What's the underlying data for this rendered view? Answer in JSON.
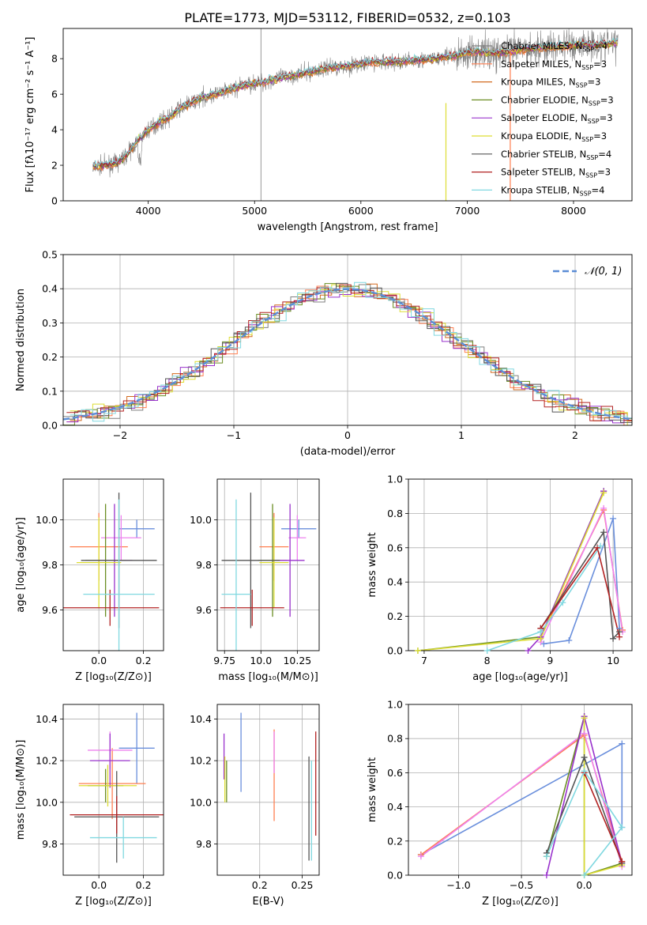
{
  "figure": {
    "title": "PLATE=1773, MJD=53112, FIBERID=0532, z=0.103"
  },
  "models": [
    {
      "name": "Chabrier MILES",
      "nssp": "4",
      "color": "#808080"
    },
    {
      "name": "Salpeter MILES",
      "nssp": "3",
      "color": "#ff7f50"
    },
    {
      "name": "Kroupa MILES",
      "nssp": "3",
      "color": "#d2691e"
    },
    {
      "name": "Chabrier ELODIE",
      "nssp": "3",
      "color": "#6b8e23"
    },
    {
      "name": "Salpeter ELODIE",
      "nssp": "3",
      "color": "#9932cc"
    },
    {
      "name": "Kroupa ELODIE",
      "nssp": "3",
      "color": "#dddd33"
    },
    {
      "name": "Chabrier STELIB",
      "nssp": "4",
      "color": "#555555"
    },
    {
      "name": "Salpeter STELIB",
      "nssp": "3",
      "color": "#b22222"
    },
    {
      "name": "Kroupa STELIB",
      "nssp": "4",
      "color": "#80d8e0"
    }
  ],
  "chart_data": [
    {
      "id": "spectrum",
      "type": "line",
      "xlabel": "wavelength [Angstrom, rest frame]",
      "ylabel": "Flux [fλ10⁻¹⁷ erg cm⁻² s⁻¹ A⁻¹]",
      "xlim": [
        3200,
        8550
      ],
      "ylim": [
        0,
        9.7
      ],
      "xticks": [
        4000,
        5000,
        6000,
        7000,
        8000
      ],
      "yticks": [
        0,
        2,
        4,
        6,
        8
      ],
      "grid": false,
      "legend": "right",
      "continuum": {
        "x": [
          3480,
          3600,
          3700,
          3800,
          3900,
          4000,
          4100,
          4200,
          4300,
          4500,
          4700,
          4900,
          5100,
          5300,
          5500,
          5700,
          5900,
          6100,
          6300,
          6500,
          6700,
          6900,
          7100,
          7300,
          7500,
          7700,
          7900,
          8100,
          8300,
          8400
        ],
        "y": [
          1.9,
          2.0,
          2.1,
          2.6,
          3.4,
          4.0,
          4.4,
          4.7,
          5.2,
          5.8,
          6.1,
          6.5,
          6.7,
          7.0,
          7.2,
          7.5,
          7.6,
          7.8,
          7.8,
          7.9,
          8.0,
          8.2,
          8.4,
          8.3,
          8.5,
          8.6,
          8.7,
          8.8,
          8.8,
          8.9
        ]
      }
    },
    {
      "id": "residual-histogram",
      "type": "step",
      "xlabel": "(data-model)/error",
      "ylabel": "Normed distribution",
      "xlim": [
        -2.5,
        2.5
      ],
      "ylim": [
        0,
        0.5
      ],
      "xticks": [
        -2,
        -1,
        0,
        1,
        2
      ],
      "yticks": [
        0.0,
        0.1,
        0.2,
        0.3,
        0.4,
        0.5
      ],
      "grid": true,
      "legend": "top-right",
      "reference_label": "𝒩(0, 1)",
      "bin_width": 0.1
    },
    {
      "id": "age-vs-Z",
      "type": "errorbar",
      "xlabel": "Z [log₁₀(Z/Z⊙)]",
      "ylabel": "age  [log₁₀(age/yr)]",
      "xlim": [
        -0.16,
        0.29
      ],
      "ylim": [
        9.42,
        10.18
      ],
      "xticks": [
        0.0,
        0.2
      ],
      "yticks": [
        9.6,
        9.8,
        10.0
      ],
      "grid": true,
      "points": [
        {
          "x": 0.17,
          "y": 9.96,
          "xerr": 0.08,
          "yerr": 0.04,
          "color": "#6a8fdc"
        },
        {
          "x": 0.0,
          "y": 9.88,
          "xerr": 0.13,
          "yerr": 0.15,
          "color": "#ff7f50"
        },
        {
          "x": 0.1,
          "y": 9.92,
          "xerr": 0.09,
          "yerr": 0.1,
          "color": "#ee82ee"
        },
        {
          "x": 0.03,
          "y": 9.82,
          "xerr": 0.09,
          "yerr": 0.25,
          "color": "#6b8e23"
        },
        {
          "x": 0.07,
          "y": 9.82,
          "xerr": 0.08,
          "yerr": 0.25,
          "color": "#9932cc"
        },
        {
          "x": 0.0,
          "y": 9.81,
          "xerr": 0.1,
          "yerr": 0.2,
          "color": "#dddd33"
        },
        {
          "x": 0.09,
          "y": 9.82,
          "xerr": 0.17,
          "yerr": 0.3,
          "color": "#555555"
        },
        {
          "x": 0.05,
          "y": 9.61,
          "xerr": 0.22,
          "yerr": 0.08,
          "color": "#b22222"
        },
        {
          "x": 0.09,
          "y": 9.67,
          "xerr": 0.16,
          "yerr": 0.42,
          "color": "#80d8e0"
        }
      ]
    },
    {
      "id": "age-vs-mass",
      "type": "errorbar",
      "xlabel": "mass [log₁₀(M/M⊙)]",
      "ylabel": "",
      "xlim": [
        9.7,
        10.4
      ],
      "ylim": [
        9.42,
        10.18
      ],
      "xticks": [
        9.75,
        10.0,
        10.25
      ],
      "yticks": [
        9.6,
        9.8,
        10.0
      ],
      "grid": true,
      "points": [
        {
          "x": 10.26,
          "y": 9.96,
          "xerr": 0.12,
          "yerr": 0.04,
          "color": "#6a8fdc"
        },
        {
          "x": 10.09,
          "y": 9.88,
          "xerr": 0.1,
          "yerr": 0.15,
          "color": "#ff7f50"
        },
        {
          "x": 10.25,
          "y": 9.92,
          "xerr": 0.06,
          "yerr": 0.1,
          "color": "#ee82ee"
        },
        {
          "x": 10.08,
          "y": 9.82,
          "xerr": 0.1,
          "yerr": 0.25,
          "color": "#6b8e23"
        },
        {
          "x": 10.2,
          "y": 9.82,
          "xerr": 0.1,
          "yerr": 0.25,
          "color": "#9932cc"
        },
        {
          "x": 10.09,
          "y": 9.81,
          "xerr": 0.1,
          "yerr": 0.2,
          "color": "#dddd33"
        },
        {
          "x": 9.93,
          "y": 9.82,
          "xerr": 0.2,
          "yerr": 0.3,
          "color": "#555555"
        },
        {
          "x": 9.94,
          "y": 9.61,
          "xerr": 0.22,
          "yerr": 0.08,
          "color": "#b22222"
        },
        {
          "x": 9.83,
          "y": 9.67,
          "xerr": 0.1,
          "yerr": 0.42,
          "color": "#80d8e0"
        }
      ]
    },
    {
      "id": "mass-weight-vs-age",
      "type": "line",
      "xlabel": "age  [log₁₀(age/yr)]",
      "ylabel": "mass weight",
      "xlim": [
        6.75,
        10.3
      ],
      "ylim": [
        0,
        1.0
      ],
      "xticks": [
        7,
        8,
        9,
        10
      ],
      "yticks": [
        0.0,
        0.2,
        0.4,
        0.6,
        0.8,
        1.0
      ],
      "grid": true,
      "series": [
        {
          "color": "#6a8fdc",
          "x": [
            8.9,
            9.3,
            10.0,
            10.1
          ],
          "y": [
            0.04,
            0.06,
            0.77,
            0.13
          ]
        },
        {
          "color": "#ff7f50",
          "x": [
            8.85,
            9.85,
            10.15
          ],
          "y": [
            0.08,
            0.82,
            0.12
          ]
        },
        {
          "color": "#ee82ee",
          "x": [
            8.85,
            9.85,
            10.15
          ],
          "y": [
            0.05,
            0.83,
            0.11
          ]
        },
        {
          "color": "#6b8e23",
          "x": [
            6.9,
            8.85,
            9.85
          ],
          "y": [
            0.0,
            0.08,
            0.93
          ]
        },
        {
          "color": "#9932cc",
          "x": [
            8.65,
            8.85,
            9.85
          ],
          "y": [
            0.0,
            0.08,
            0.93
          ]
        },
        {
          "color": "#dddd33",
          "x": [
            6.9,
            8.85,
            9.85
          ],
          "y": [
            0.0,
            0.07,
            0.92
          ]
        },
        {
          "color": "#555555",
          "x": [
            8.85,
            9.85,
            10.0,
            10.1
          ],
          "y": [
            0.13,
            0.69,
            0.07,
            0.11
          ]
        },
        {
          "color": "#b22222",
          "x": [
            8.85,
            9.75,
            10.1
          ],
          "y": [
            0.13,
            0.6,
            0.08
          ]
        },
        {
          "color": "#80d8e0",
          "x": [
            8.0,
            8.85,
            9.2,
            9.8
          ],
          "y": [
            0.0,
            0.11,
            0.28,
            0.61
          ]
        }
      ]
    },
    {
      "id": "mass-vs-Z",
      "type": "errorbar",
      "xlabel": "Z [log₁₀(Z/Z⊙)]",
      "ylabel": "mass [log₁₀(M/M⊙)]",
      "xlim": [
        -0.16,
        0.29
      ],
      "ylim": [
        9.65,
        10.47
      ],
      "xticks": [
        0.0,
        0.2
      ],
      "yticks": [
        9.8,
        10.0,
        10.2,
        10.4
      ],
      "grid": true,
      "points": [
        {
          "x": 0.17,
          "y": 10.26,
          "xerr": 0.08,
          "yerr": 0.17,
          "color": "#6a8fdc"
        },
        {
          "x": 0.06,
          "y": 10.09,
          "xerr": 0.15,
          "yerr": 0.17,
          "color": "#ff7f50"
        },
        {
          "x": 0.05,
          "y": 10.25,
          "xerr": 0.1,
          "yerr": 0.09,
          "color": "#ee82ee"
        },
        {
          "x": 0.03,
          "y": 10.08,
          "xerr": 0.08,
          "yerr": 0.08,
          "color": "#6b8e23"
        },
        {
          "x": 0.05,
          "y": 10.2,
          "xerr": 0.09,
          "yerr": 0.13,
          "color": "#9932cc"
        },
        {
          "x": 0.04,
          "y": 10.08,
          "xerr": 0.13,
          "yerr": 0.1,
          "color": "#dddd33"
        },
        {
          "x": 0.08,
          "y": 9.93,
          "xerr": 0.19,
          "yerr": 0.22,
          "color": "#555555"
        },
        {
          "x": 0.08,
          "y": 9.94,
          "xerr": 0.21,
          "yerr": 0.09,
          "color": "#b22222"
        },
        {
          "x": 0.11,
          "y": 9.83,
          "xerr": 0.15,
          "yerr": 0.1,
          "color": "#80d8e0"
        }
      ]
    },
    {
      "id": "mass-vs-ebv",
      "type": "errorbar",
      "xlabel": "E(B-V)",
      "ylabel": "",
      "xlim": [
        0.15,
        0.27
      ],
      "ylim": [
        9.65,
        10.47
      ],
      "xticks": [
        0.2,
        0.25
      ],
      "yticks": [
        9.8,
        10.0,
        10.2,
        10.4
      ],
      "grid": true,
      "points": [
        {
          "x": 0.178,
          "y": 10.24,
          "xerr": 0,
          "yerr": 0.19,
          "color": "#6a8fdc"
        },
        {
          "x": 0.217,
          "y": 10.13,
          "xerr": 0,
          "yerr": 0.22,
          "color": "#ff7f50"
        },
        {
          "x": 0.217,
          "y": 10.24,
          "xerr": 0,
          "yerr": 0.1,
          "color": "#ee82ee"
        },
        {
          "x": 0.161,
          "y": 10.1,
          "xerr": 0,
          "yerr": 0.1,
          "color": "#6b8e23"
        },
        {
          "x": 0.158,
          "y": 10.22,
          "xerr": 0,
          "yerr": 0.11,
          "color": "#9932cc"
        },
        {
          "x": 0.159,
          "y": 10.11,
          "xerr": 0,
          "yerr": 0.11,
          "color": "#dddd33"
        },
        {
          "x": 0.258,
          "y": 9.97,
          "xerr": 0,
          "yerr": 0.25,
          "color": "#555555"
        },
        {
          "x": 0.266,
          "y": 10.09,
          "xerr": 0,
          "yerr": 0.25,
          "color": "#b22222"
        },
        {
          "x": 0.261,
          "y": 9.96,
          "xerr": 0,
          "yerr": 0.24,
          "color": "#80d8e0"
        }
      ]
    },
    {
      "id": "mass-weight-vs-Z",
      "type": "line",
      "xlabel": "Z [log₁₀(Z/Z⊙)]",
      "ylabel": "mass weight",
      "xlim": [
        -1.4,
        0.38
      ],
      "ylim": [
        0,
        1.0
      ],
      "xticks": [
        -1.0,
        -0.5,
        0.0
      ],
      "yticks": [
        0.0,
        0.2,
        0.4,
        0.6,
        0.8,
        1.0
      ],
      "grid": true,
      "series": [
        {
          "color": "#6a8fdc",
          "x": [
            -1.3,
            0.3,
            0.3
          ],
          "y": [
            0.12,
            0.77,
            0.28
          ]
        },
        {
          "color": "#ff7f50",
          "x": [
            -1.3,
            0.0,
            0.3
          ],
          "y": [
            0.12,
            0.82,
            0.08
          ]
        },
        {
          "color": "#ee82ee",
          "x": [
            -1.3,
            0.0,
            0.3
          ],
          "y": [
            0.11,
            0.83,
            0.05
          ]
        },
        {
          "color": "#6b8e23",
          "x": [
            -0.3,
            0.0,
            0.0,
            0.3
          ],
          "y": [
            0.11,
            0.93,
            0.0,
            0.07
          ]
        },
        {
          "color": "#9932cc",
          "x": [
            -0.3,
            0.0,
            0.3
          ],
          "y": [
            0.0,
            0.93,
            0.07
          ]
        },
        {
          "color": "#dddd33",
          "x": [
            0.0,
            0.0,
            0.3
          ],
          "y": [
            0.92,
            0.0,
            0.06
          ]
        },
        {
          "color": "#555555",
          "x": [
            -0.3,
            0.0,
            0.3
          ],
          "y": [
            0.13,
            0.69,
            0.07
          ]
        },
        {
          "color": "#b22222",
          "x": [
            0.0,
            0.3
          ],
          "y": [
            0.6,
            0.08
          ]
        },
        {
          "color": "#80d8e0",
          "x": [
            -0.3,
            0.0,
            0.3,
            0.0
          ],
          "y": [
            0.11,
            0.61,
            0.28,
            0.0
          ]
        }
      ]
    }
  ]
}
